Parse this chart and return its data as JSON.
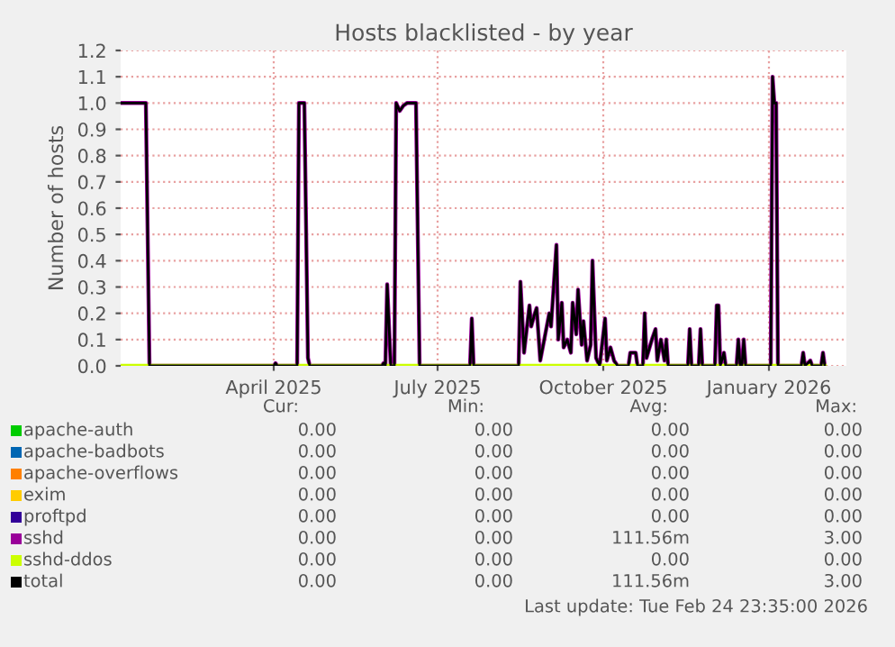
{
  "chart_data": {
    "type": "line",
    "title": "Hosts blacklisted - by year",
    "ylabel": "Number of hosts",
    "xlim": [
      "2025-01-06",
      "2026-02-13"
    ],
    "xticks": [
      {
        "value": "2025-04-01",
        "label": "April 2025"
      },
      {
        "value": "2025-07-01",
        "label": "July 2025"
      },
      {
        "value": "2025-10-01",
        "label": "October 2025"
      },
      {
        "value": "2026-01-01",
        "label": "January 2026"
      }
    ],
    "ylim": [
      0,
      1.2
    ],
    "yticks": [
      {
        "value": 0,
        "label": "0.0"
      },
      {
        "value": 0.1,
        "label": "0.1"
      },
      {
        "value": 0.2,
        "label": "0.2"
      },
      {
        "value": 0.3,
        "label": "0.3"
      },
      {
        "value": 0.4,
        "label": "0.4"
      },
      {
        "value": 0.5,
        "label": "0.5"
      },
      {
        "value": 0.6,
        "label": "0.6"
      },
      {
        "value": 0.7,
        "label": "0.7"
      },
      {
        "value": 0.8,
        "label": "0.8"
      },
      {
        "value": 0.9,
        "label": "0.9"
      },
      {
        "value": 1.0,
        "label": "1.0"
      },
      {
        "value": 1.1,
        "label": "1.1"
      },
      {
        "value": 1.2,
        "label": "1.2"
      }
    ],
    "grid": true,
    "legend": "bottom",
    "marker": "none",
    "line_style": "solid",
    "x": [
      "2025-01-06",
      "2025-01-20",
      "2025-01-22",
      "2025-04-01",
      "2025-04-02",
      "2025-04-03",
      "2025-04-14",
      "2025-04-15",
      "2025-04-18",
      "2025-04-20",
      "2025-04-21",
      "2025-05-31",
      "2025-06-01",
      "2025-06-02",
      "2025-06-03",
      "2025-06-05",
      "2025-06-07",
      "2025-06-08",
      "2025-06-10",
      "2025-06-12",
      "2025-06-14",
      "2025-06-19",
      "2025-06-21",
      "2025-07-19",
      "2025-07-20",
      "2025-07-21",
      "2025-08-15",
      "2025-08-16",
      "2025-08-18",
      "2025-08-21",
      "2025-08-22",
      "2025-08-24",
      "2025-08-25",
      "2025-08-27",
      "2025-09-01",
      "2025-09-02",
      "2025-09-05",
      "2025-09-06",
      "2025-09-08",
      "2025-09-09",
      "2025-09-11",
      "2025-09-13",
      "2025-09-14",
      "2025-09-16",
      "2025-09-17",
      "2025-09-19",
      "2025-09-20",
      "2025-09-22",
      "2025-09-24",
      "2025-09-25",
      "2025-09-27",
      "2025-09-29",
      "2025-10-02",
      "2025-10-03",
      "2025-10-05",
      "2025-10-07",
      "2025-10-09",
      "2025-10-15",
      "2025-10-16",
      "2025-10-19",
      "2025-10-20",
      "2025-10-23",
      "2025-10-24",
      "2025-10-25",
      "2025-10-28",
      "2025-10-30",
      "2025-10-31",
      "2025-11-02",
      "2025-11-04",
      "2025-11-05",
      "2025-11-06",
      "2025-11-17",
      "2025-11-18",
      "2025-11-19",
      "2025-11-23",
      "2025-11-24",
      "2025-11-25",
      "2025-12-02",
      "2025-12-03",
      "2025-12-04",
      "2025-12-05",
      "2025-12-07",
      "2025-12-08",
      "2025-12-14",
      "2025-12-15",
      "2025-12-16",
      "2025-12-17",
      "2025-12-18",
      "2025-12-19",
      "2026-01-02",
      "2026-01-03",
      "2026-01-04",
      "2026-01-05",
      "2026-01-06",
      "2026-01-19",
      "2026-01-20",
      "2026-01-21",
      "2026-01-24",
      "2026-01-25",
      "2026-01-30",
      "2026-01-31",
      "2026-02-01"
    ],
    "series": [
      {
        "name": "apache-auth",
        "color": "#00cc00",
        "values": [
          null,
          null,
          null,
          null,
          null,
          null,
          null,
          null,
          null,
          null,
          null,
          null,
          null,
          null,
          null,
          null,
          null,
          null,
          null,
          null,
          null,
          null,
          null,
          null,
          null,
          null,
          null,
          null,
          null,
          null,
          null,
          null,
          null,
          null,
          null,
          null,
          null,
          null,
          null,
          null,
          null,
          null,
          null,
          null,
          null,
          null,
          null,
          null,
          null,
          null,
          null,
          null,
          null,
          null,
          null,
          null,
          null,
          null,
          null,
          null,
          null,
          null,
          null,
          null,
          null,
          null,
          null,
          null,
          null,
          null,
          null,
          null,
          null,
          null,
          null,
          null,
          null,
          null,
          null,
          null,
          null,
          null,
          null,
          null,
          null,
          null,
          null,
          null,
          null,
          null,
          null,
          null,
          null,
          null,
          null,
          null,
          null,
          null,
          null,
          null,
          null,
          null
        ]
      },
      {
        "name": "apache-badbots",
        "color": "#0066b3",
        "values": [
          null,
          null,
          null,
          null,
          null,
          null,
          null,
          null,
          null,
          null,
          null,
          null,
          null,
          null,
          null,
          null,
          null,
          null,
          null,
          null,
          null,
          null,
          null,
          null,
          null,
          null,
          null,
          null,
          null,
          null,
          null,
          null,
          null,
          null,
          null,
          null,
          null,
          null,
          null,
          null,
          null,
          null,
          null,
          null,
          null,
          null,
          null,
          null,
          null,
          null,
          null,
          null,
          null,
          null,
          null,
          null,
          null,
          null,
          null,
          null,
          null,
          null,
          null,
          null,
          null,
          null,
          null,
          null,
          null,
          null,
          null,
          null,
          null,
          null,
          null,
          null,
          null,
          null,
          null,
          null,
          null,
          null,
          null,
          null,
          null,
          null,
          null,
          null,
          null,
          null,
          null,
          null,
          null,
          null,
          null,
          null,
          null,
          null,
          null,
          null,
          null,
          null
        ]
      },
      {
        "name": "apache-overflows",
        "color": "#ff8000",
        "values": [
          null,
          null,
          null,
          null,
          null,
          null,
          null,
          null,
          null,
          null,
          null,
          null,
          null,
          null,
          null,
          null,
          null,
          null,
          null,
          null,
          null,
          null,
          null,
          null,
          null,
          null,
          null,
          null,
          null,
          null,
          null,
          null,
          null,
          null,
          null,
          null,
          null,
          null,
          null,
          null,
          null,
          null,
          null,
          null,
          null,
          null,
          null,
          null,
          null,
          null,
          null,
          null,
          null,
          null,
          null,
          null,
          null,
          null,
          null,
          null,
          null,
          null,
          null,
          null,
          null,
          null,
          null,
          null,
          null,
          null,
          null,
          null,
          null,
          null,
          null,
          null,
          null,
          null,
          null,
          null,
          null,
          null,
          null,
          null,
          null,
          null,
          null,
          null,
          null,
          null,
          null,
          null,
          null,
          null,
          null,
          null,
          null,
          null,
          null,
          null,
          null,
          null
        ]
      },
      {
        "name": "exim",
        "color": "#ffcc00",
        "values": [
          null,
          null,
          null,
          null,
          null,
          null,
          null,
          null,
          null,
          null,
          null,
          null,
          null,
          null,
          null,
          null,
          null,
          null,
          null,
          null,
          null,
          null,
          null,
          null,
          null,
          null,
          null,
          null,
          null,
          null,
          null,
          null,
          null,
          null,
          null,
          null,
          null,
          null,
          null,
          null,
          null,
          null,
          null,
          null,
          null,
          null,
          null,
          null,
          null,
          null,
          null,
          null,
          null,
          null,
          null,
          null,
          null,
          null,
          null,
          null,
          null,
          null,
          null,
          null,
          null,
          null,
          null,
          null,
          null,
          null,
          null,
          null,
          null,
          null,
          null,
          null,
          null,
          null,
          null,
          null,
          null,
          null,
          null,
          null,
          null,
          null,
          null,
          null,
          null,
          null,
          null,
          null,
          null,
          null,
          null,
          null,
          null,
          null,
          null,
          null,
          null,
          null
        ]
      },
      {
        "name": "proftpd",
        "color": "#330099",
        "values": [
          null,
          null,
          null,
          null,
          null,
          null,
          null,
          null,
          null,
          null,
          null,
          null,
          null,
          null,
          null,
          null,
          null,
          null,
          null,
          null,
          null,
          null,
          null,
          null,
          null,
          null,
          null,
          null,
          null,
          null,
          null,
          null,
          null,
          null,
          null,
          null,
          null,
          null,
          null,
          null,
          null,
          null,
          null,
          null,
          null,
          null,
          null,
          null,
          null,
          null,
          null,
          null,
          null,
          null,
          null,
          null,
          null,
          null,
          null,
          null,
          null,
          null,
          null,
          null,
          null,
          null,
          null,
          null,
          null,
          null,
          null,
          null,
          null,
          null,
          null,
          null,
          null,
          null,
          null,
          null,
          null,
          null,
          null,
          null,
          null,
          null,
          null,
          null,
          null,
          null,
          null,
          null,
          null,
          null,
          null,
          null,
          null,
          null,
          null,
          null,
          null,
          null
        ]
      },
      {
        "name": "sshd",
        "color": "#990099",
        "values": [
          1.0,
          1.0,
          0,
          0,
          0.01,
          0,
          0,
          1.0,
          1.0,
          0.03,
          0,
          0,
          0.01,
          0,
          0.31,
          0,
          0,
          1.0,
          0.97,
          0.99,
          1.0,
          1.0,
          0,
          0,
          0.18,
          0,
          0,
          0.32,
          0.05,
          0.23,
          0.15,
          0.2,
          0.22,
          0.02,
          0.2,
          0.15,
          0.46,
          0.1,
          0.24,
          0.07,
          0.1,
          0.05,
          0.24,
          0.12,
          0.29,
          0.08,
          0.17,
          0.02,
          0.08,
          0.4,
          0.03,
          0,
          0.18,
          0.02,
          0.07,
          0.02,
          0,
          0,
          0.05,
          0.05,
          0,
          0,
          0.2,
          0.03,
          0.1,
          0.14,
          0.02,
          0.1,
          0.02,
          0.1,
          0,
          0,
          0.14,
          0,
          0,
          0.14,
          0,
          0,
          0.23,
          0.23,
          0,
          0.05,
          0,
          0,
          0.1,
          0,
          0,
          0.1,
          0,
          0,
          1.1,
          1.0,
          1.0,
          0,
          0,
          0.05,
          0,
          0.02,
          0,
          0,
          0.05,
          0
        ]
      },
      {
        "name": "sshd-ddos",
        "color": "#ccff00",
        "x": [
          "2025-01-06",
          "2026-02-01"
        ],
        "values": [
          0,
          0
        ]
      },
      {
        "name": "total",
        "color": "#000000",
        "values": [
          1.0,
          1.0,
          0,
          0,
          0.01,
          0,
          0,
          1.0,
          1.0,
          0.03,
          0,
          0,
          0.01,
          0,
          0.31,
          0,
          0,
          1.0,
          0.97,
          0.99,
          1.0,
          1.0,
          0,
          0,
          0.18,
          0,
          0,
          0.32,
          0.05,
          0.23,
          0.15,
          0.2,
          0.22,
          0.02,
          0.2,
          0.15,
          0.46,
          0.1,
          0.24,
          0.07,
          0.1,
          0.05,
          0.24,
          0.12,
          0.29,
          0.08,
          0.17,
          0.02,
          0.08,
          0.4,
          0.03,
          0,
          0.18,
          0.02,
          0.07,
          0.02,
          0,
          0,
          0.05,
          0.05,
          0,
          0,
          0.2,
          0.03,
          0.1,
          0.14,
          0.02,
          0.1,
          0.02,
          0.1,
          0,
          0,
          0.14,
          0,
          0,
          0.14,
          0,
          0,
          0.23,
          0.23,
          0,
          0.05,
          0,
          0,
          0.1,
          0,
          0,
          0.1,
          0,
          0,
          1.1,
          1.0,
          1.0,
          0,
          0,
          0.05,
          0,
          0.02,
          0,
          0,
          0.05,
          0
        ]
      }
    ],
    "annotations": [
      "Cur:",
      "Min:",
      "Avg:",
      "Max:",
      "0.00",
      "0.00",
      "0.00",
      "0.00",
      "0.00",
      "0.00",
      "0.00",
      "0.00",
      "0.00",
      "0.00",
      "0.00",
      "0.00",
      "0.00",
      "0.00",
      "0.00",
      "0.00",
      "0.00",
      "0.00",
      "0.00",
      "0.00",
      "0.00",
      "0.00",
      "111.56m",
      "3.00",
      "0.00",
      "0.00",
      "0.00",
      "0.00",
      "0.00",
      "0.00",
      "111.56m",
      "3.00",
      "Last update: Tue Feb 24 23:35:00 2026"
    ]
  }
}
